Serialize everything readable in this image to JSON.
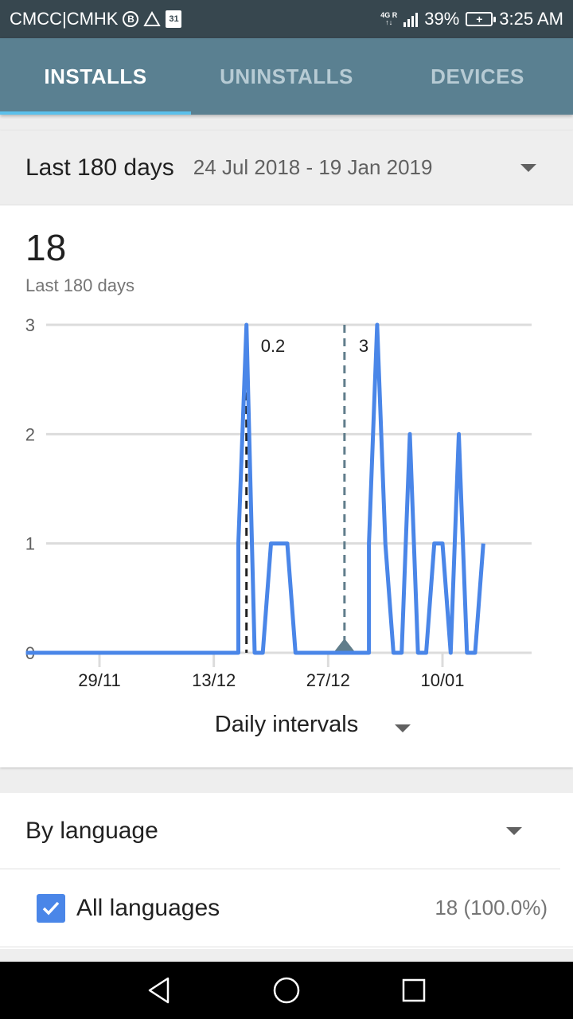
{
  "status_bar": {
    "carrier": "CMCC|CMHK",
    "b_icon_text": "B",
    "calendar_day": "31",
    "network_tag_top": "4G R",
    "network_tag_bottom": "↑↓",
    "battery_percent": "39%",
    "time": "3:25 AM"
  },
  "tabs": [
    {
      "label": "INSTALLS",
      "active": true
    },
    {
      "label": "UNINSTALLS",
      "active": false
    },
    {
      "label": "DEVICES",
      "active": false
    }
  ],
  "date_range": {
    "label": "Last 180 days",
    "dates": "24 Jul 2018 - 19 Jan 2019"
  },
  "summary": {
    "total": "18",
    "subtitle": "Last 180 days"
  },
  "chart_data": {
    "type": "line",
    "y_ticks": [
      "0",
      "1",
      "2",
      "3"
    ],
    "ylim": [
      0,
      3
    ],
    "x_ticks": [
      "29/11",
      "13/12",
      "27/12",
      "10/01"
    ],
    "x_tick_days": [
      5,
      19,
      33,
      47
    ],
    "xlim": [
      0,
      56
    ],
    "grid": true,
    "series": [
      {
        "color": "#4a86e8",
        "points": [
          [
            -4,
            0
          ],
          [
            20,
            0
          ],
          [
            22,
            0
          ],
          [
            22,
            1
          ],
          [
            23,
            3
          ],
          [
            24,
            0
          ],
          [
            25,
            0
          ],
          [
            26,
            1
          ],
          [
            28,
            1
          ],
          [
            29,
            0
          ],
          [
            32,
            0
          ],
          [
            34,
            0
          ],
          [
            36,
            0
          ],
          [
            38,
            0
          ],
          [
            38,
            1
          ],
          [
            39,
            3
          ],
          [
            40,
            1
          ],
          [
            41,
            0
          ],
          [
            42,
            0
          ],
          [
            43,
            2
          ],
          [
            44,
            0
          ],
          [
            45,
            0
          ],
          [
            46,
            1
          ],
          [
            47,
            1
          ],
          [
            48,
            0
          ],
          [
            49,
            2
          ],
          [
            50,
            0
          ],
          [
            51,
            0
          ],
          [
            52,
            1
          ]
        ]
      }
    ],
    "annotations": [
      {
        "x": 23,
        "label": "0.2",
        "line_color": "#212121",
        "style": "dashed"
      },
      {
        "x": 35,
        "label": "3",
        "line_color": "#607d8b",
        "style": "dashed",
        "marker": "triangle"
      }
    ]
  },
  "interval": {
    "label": "Daily intervals"
  },
  "language": {
    "header": "By language",
    "rows": [
      {
        "name": "All languages",
        "value": "18 (100.0%)",
        "checked": true
      }
    ]
  },
  "nav": {
    "icons": [
      "back-icon",
      "home-icon",
      "recents-icon"
    ]
  }
}
